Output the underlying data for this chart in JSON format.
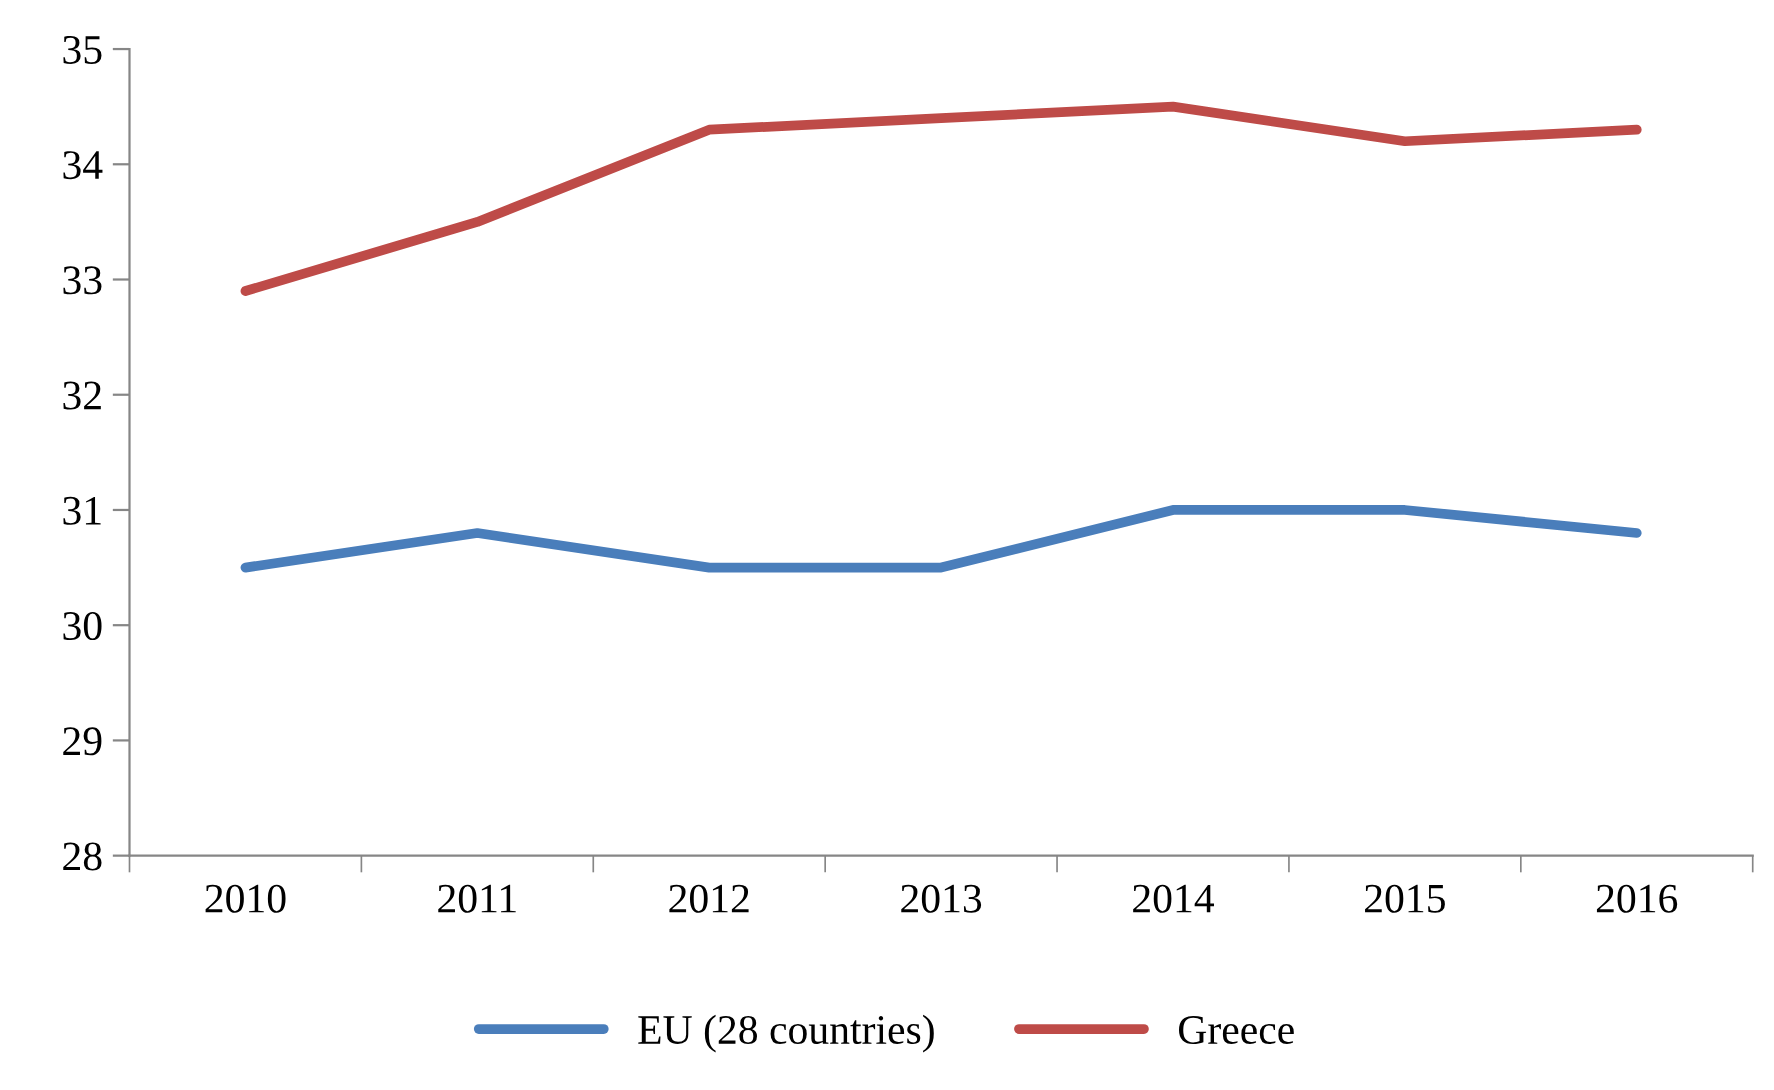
{
  "chart_data": {
    "type": "line",
    "categories": [
      "2010",
      "2011",
      "2012",
      "2013",
      "2014",
      "2015",
      "2016"
    ],
    "series": [
      {
        "name": "EU (28 countries)",
        "color": "#4a7ebb",
        "values": [
          30.5,
          30.8,
          30.5,
          30.5,
          31.0,
          31.0,
          30.8
        ]
      },
      {
        "name": "Greece",
        "color": "#be4b48",
        "values": [
          32.9,
          33.5,
          34.3,
          34.4,
          34.5,
          34.2,
          34.3
        ]
      }
    ],
    "ylim": [
      28,
      35
    ],
    "yticks": [
      28,
      29,
      30,
      31,
      32,
      33,
      34,
      35
    ],
    "grid": false,
    "legend": "bottom",
    "marker": "none",
    "line_style": "solid"
  }
}
